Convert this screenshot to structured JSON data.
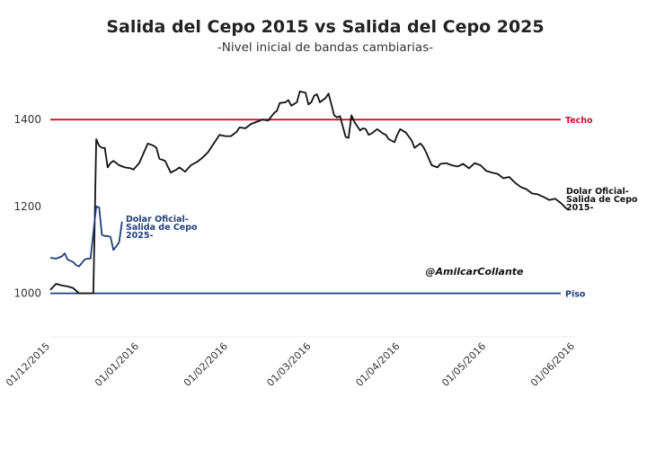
{
  "chart_data": {
    "type": "line",
    "title": "Salida del Cepo 2015 vs Salida del Cepo 2025",
    "subtitle": "-Nivel inicial de bandas cambiarias-",
    "xlabel": "",
    "ylabel": "",
    "xlim": [
      0,
      183
    ],
    "ylim": [
      900,
      1510
    ],
    "y_ticks": [
      1000,
      1200,
      1400
    ],
    "x_ticks": [
      {
        "day": 0,
        "label": "01/12/2015"
      },
      {
        "day": 31,
        "label": "01/01/2016"
      },
      {
        "day": 62,
        "label": "01/02/2016"
      },
      {
        "day": 91,
        "label": "01/03/2016"
      },
      {
        "day": 122,
        "label": "01/04/2016"
      },
      {
        "day": 152,
        "label": "01/05/2016"
      },
      {
        "day": 183,
        "label": "01/06/2016"
      }
    ],
    "grid": false,
    "colors": {
      "techo": "#c8102e",
      "piso": "#1f3f7a",
      "oficial2015": "#111111",
      "oficial2025": "#1f3f7a"
    },
    "reference_lines": [
      {
        "name": "Techo",
        "value": 1400,
        "label": "Techo"
      },
      {
        "name": "Piso",
        "value": 1000,
        "label": "Piso"
      }
    ],
    "series": [
      {
        "name": "Dolar Oficial -Salida de Cepo 2015-",
        "label_lines": [
          "Dolar Oficial-",
          "Salida de Cepo",
          "2015-"
        ],
        "x": [
          0,
          2,
          4,
          6,
          8,
          10,
          12,
          14,
          15,
          16,
          17,
          18,
          19,
          20,
          21,
          22,
          23,
          24,
          26,
          28,
          29,
          31,
          34,
          36,
          37,
          38,
          40,
          42,
          44,
          45,
          47,
          49,
          51,
          53,
          55,
          57,
          59,
          61,
          63,
          65,
          66,
          68,
          70,
          72,
          74,
          76,
          78,
          79,
          80,
          82,
          83,
          84,
          86,
          87,
          89,
          90,
          91,
          92,
          93,
          94,
          96,
          97,
          99,
          100,
          101,
          103,
          104,
          105,
          106,
          108,
          109,
          110,
          111,
          112,
          114,
          116,
          117,
          118,
          120,
          121,
          122,
          124,
          126,
          127,
          129,
          130,
          131,
          133,
          135,
          136,
          138,
          140,
          142,
          144,
          146,
          148,
          150,
          152,
          154,
          156,
          158,
          160,
          162,
          164,
          166,
          168,
          170,
          172,
          174,
          176,
          178,
          180,
          181
        ],
        "values": [
          1008,
          1022,
          1018,
          1016,
          1012,
          1000,
          1000,
          1000,
          1000,
          1355,
          1340,
          1335,
          1335,
          1290,
          1300,
          1305,
          1300,
          1295,
          1290,
          1288,
          1285,
          1300,
          1345,
          1340,
          1335,
          1310,
          1305,
          1278,
          1285,
          1290,
          1280,
          1295,
          1302,
          1312,
          1325,
          1345,
          1365,
          1362,
          1362,
          1372,
          1382,
          1380,
          1390,
          1395,
          1400,
          1398,
          1415,
          1420,
          1438,
          1440,
          1445,
          1432,
          1440,
          1465,
          1462,
          1435,
          1440,
          1455,
          1458,
          1440,
          1450,
          1460,
          1410,
          1405,
          1408,
          1360,
          1358,
          1410,
          1395,
          1375,
          1380,
          1378,
          1365,
          1368,
          1378,
          1368,
          1365,
          1355,
          1348,
          1365,
          1378,
          1370,
          1352,
          1335,
          1345,
          1338,
          1325,
          1295,
          1290,
          1298,
          1300,
          1295,
          1292,
          1298,
          1288,
          1300,
          1295,
          1282,
          1278,
          1275,
          1265,
          1268,
          1255,
          1245,
          1240,
          1230,
          1228,
          1222,
          1215,
          1218,
          1208,
          1195,
          1192
        ]
      },
      {
        "name": "Dolar Oficial -Salida de Cepo 2025-",
        "label_lines": [
          "Dolar Oficial-",
          "Salida de Cepo",
          "2025-"
        ],
        "x": [
          0,
          2,
          4,
          5,
          6,
          7,
          8,
          9,
          10,
          11,
          12,
          13,
          14,
          15,
          16,
          17,
          18,
          19,
          20,
          21,
          22,
          23,
          24,
          25
        ],
        "values": [
          1082,
          1080,
          1085,
          1092,
          1078,
          1075,
          1072,
          1065,
          1062,
          1070,
          1078,
          1080,
          1080,
          1140,
          1200,
          1198,
          1135,
          1132,
          1132,
          1130,
          1100,
          1108,
          1118,
          1165
        ]
      }
    ],
    "annotation": "@AmilcarCollante"
  }
}
